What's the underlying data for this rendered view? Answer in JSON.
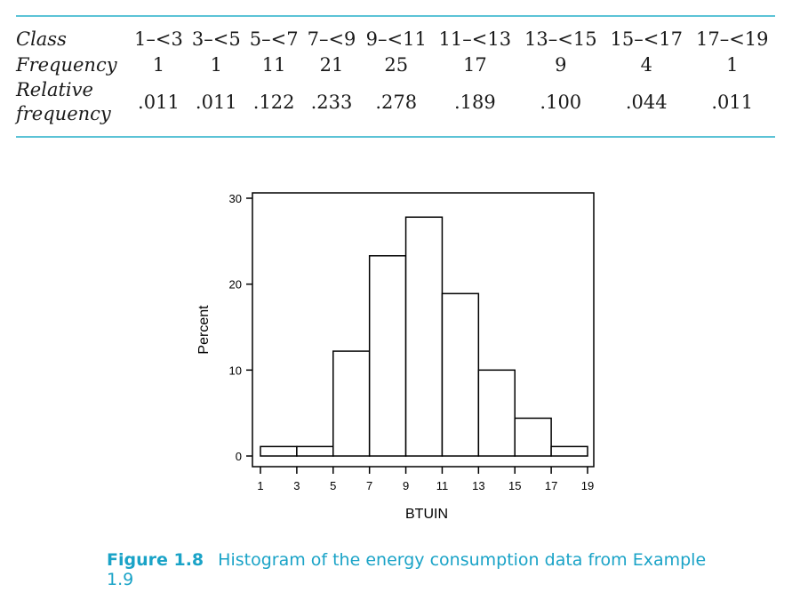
{
  "table": {
    "class_label": "Class",
    "frequency_label": "Frequency",
    "relative_label_line1": "Relative",
    "relative_label_line2": "frequency",
    "classes": [
      "1–<3",
      "3–<5",
      "5–<7",
      "7–<9",
      "9–<11",
      "11–<13",
      "13–<15",
      "15–<17",
      "17–<19"
    ],
    "frequencies": [
      "1",
      "1",
      "11",
      "21",
      "25",
      "17",
      "9",
      "4",
      "1"
    ],
    "relative_frequencies": [
      ".011",
      ".011",
      ".122",
      ".233",
      ".278",
      ".189",
      ".100",
      ".044",
      ".011"
    ]
  },
  "chart_data": {
    "type": "bar",
    "title": "",
    "xlabel": "BTUIN",
    "ylabel": "Percent",
    "bin_edges": [
      1,
      3,
      5,
      7,
      9,
      11,
      13,
      15,
      17,
      19
    ],
    "values": [
      1.1,
      1.1,
      12.2,
      23.3,
      27.8,
      18.9,
      10.0,
      4.4,
      1.1
    ],
    "xlim": [
      1,
      19
    ],
    "ylim": [
      0,
      30
    ],
    "x_ticks": [
      "1",
      "3",
      "5",
      "7",
      "9",
      "11",
      "13",
      "15",
      "17",
      "19"
    ],
    "y_ticks": [
      "0",
      "10",
      "20",
      "30"
    ],
    "grid": false
  },
  "caption": {
    "figure_label": "Figure 1.8",
    "text": "Histogram of the energy consumption data from Example 1.9"
  },
  "colors": {
    "accent": "#1aa3c7",
    "rule": "#5cc3d6"
  }
}
